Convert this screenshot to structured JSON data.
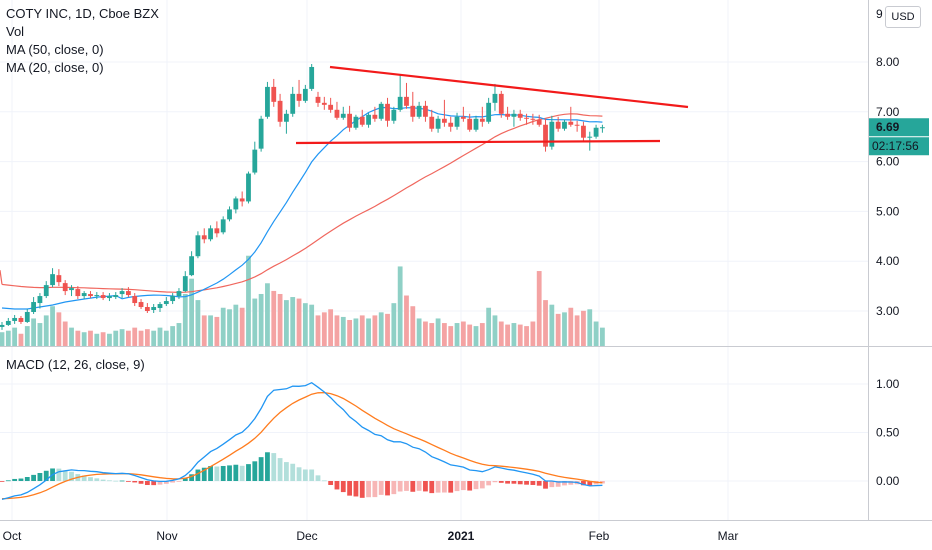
{
  "legend": {
    "symbol": "COTY INC, 1D, Cboe BZX",
    "vol": "Vol",
    "ma50": "MA (50, close, 0)",
    "ma20": "MA (20, close, 0)",
    "macd": "MACD (12, 26, close, 9)"
  },
  "currency": "USD",
  "price_label": "6.69",
  "countdown_label": "02:17:56",
  "top_axis_fragment": "9",
  "colors": {
    "up": "#26a69a",
    "down": "#ef5350",
    "vol_up": "#8fd0c6",
    "vol_down": "#f4a3a3",
    "ma20": "#2196f3",
    "ma50": "#f0675e",
    "macd": "#2196f3",
    "signal": "#ff7c1e",
    "trendline": "#f21a1a",
    "price_tag": "#26a69a"
  },
  "chart_data": [
    {
      "type": "candlestick",
      "title": "COTY INC, 1D, Cboe BZX",
      "y_axis": {
        "ticks": [
          "3.00",
          "4.00",
          "5.00",
          "6.00",
          "7.00",
          "8.00"
        ],
        "range": [
          2.3,
          9.1
        ]
      },
      "x_axis": {
        "ticks": [
          "Oct",
          "Nov",
          "Dec",
          "2021",
          "Feb",
          "Mar"
        ]
      },
      "ohlc": [
        [
          2.68,
          2.78,
          2.62,
          2.72
        ],
        [
          2.72,
          2.86,
          2.7,
          2.8
        ],
        [
          2.8,
          2.92,
          2.74,
          2.86
        ],
        [
          2.86,
          2.9,
          2.74,
          2.78
        ],
        [
          2.78,
          3.04,
          2.76,
          2.98
        ],
        [
          2.98,
          3.28,
          2.94,
          3.18
        ],
        [
          3.16,
          3.36,
          3.05,
          3.3
        ],
        [
          3.3,
          3.6,
          3.26,
          3.52
        ],
        [
          3.52,
          3.86,
          3.48,
          3.74
        ],
        [
          3.72,
          3.84,
          3.5,
          3.58
        ],
        [
          3.56,
          3.62,
          3.32,
          3.4
        ],
        [
          3.42,
          3.52,
          3.3,
          3.46
        ],
        [
          3.44,
          3.5,
          3.24,
          3.3
        ],
        [
          3.3,
          3.4,
          3.24,
          3.36
        ],
        [
          3.34,
          3.4,
          3.26,
          3.3
        ],
        [
          3.3,
          3.38,
          3.24,
          3.32
        ],
        [
          3.32,
          3.38,
          3.22,
          3.26
        ],
        [
          3.26,
          3.36,
          3.2,
          3.3
        ],
        [
          3.28,
          3.38,
          3.24,
          3.32
        ],
        [
          3.34,
          3.46,
          3.26,
          3.4
        ],
        [
          3.4,
          3.48,
          3.28,
          3.32
        ],
        [
          3.3,
          3.36,
          3.1,
          3.16
        ],
        [
          3.18,
          3.24,
          3.04,
          3.08
        ],
        [
          3.08,
          3.16,
          2.96,
          3.0
        ],
        [
          3.02,
          3.14,
          2.96,
          3.08
        ],
        [
          3.06,
          3.18,
          2.98,
          3.14
        ],
        [
          3.14,
          3.28,
          3.1,
          3.2
        ],
        [
          3.2,
          3.36,
          3.14,
          3.3
        ],
        [
          3.3,
          3.46,
          3.24,
          3.4
        ],
        [
          3.4,
          3.8,
          3.38,
          3.7
        ],
        [
          3.72,
          4.2,
          3.7,
          4.1
        ],
        [
          4.1,
          4.6,
          4.06,
          4.52
        ],
        [
          4.52,
          4.66,
          4.36,
          4.44
        ],
        [
          4.44,
          4.72,
          4.4,
          4.66
        ],
        [
          4.66,
          4.8,
          4.48,
          4.56
        ],
        [
          4.58,
          4.9,
          4.54,
          4.84
        ],
        [
          4.84,
          5.1,
          4.8,
          5.04
        ],
        [
          5.04,
          5.3,
          4.96,
          5.26
        ],
        [
          5.26,
          5.4,
          5.1,
          5.2
        ],
        [
          5.2,
          5.8,
          5.16,
          5.76
        ],
        [
          5.78,
          6.4,
          5.74,
          6.24
        ],
        [
          6.26,
          6.92,
          6.2,
          6.86
        ],
        [
          6.9,
          7.6,
          6.86,
          7.5
        ],
        [
          7.5,
          7.66,
          7.1,
          7.2
        ],
        [
          7.22,
          7.36,
          6.7,
          6.8
        ],
        [
          6.8,
          7.04,
          6.56,
          6.96
        ],
        [
          6.96,
          7.5,
          6.9,
          7.36
        ],
        [
          7.36,
          7.64,
          7.1,
          7.22
        ],
        [
          7.22,
          7.54,
          7.18,
          7.46
        ],
        [
          7.46,
          7.96,
          7.42,
          7.9
        ],
        [
          7.3,
          7.4,
          7.1,
          7.18
        ],
        [
          7.18,
          7.3,
          7.04,
          7.14
        ],
        [
          7.14,
          7.28,
          6.98,
          7.04
        ],
        [
          7.04,
          7.2,
          6.84,
          6.88
        ],
        [
          6.88,
          7.1,
          6.84,
          6.96
        ],
        [
          6.96,
          7.12,
          6.6,
          6.68
        ],
        [
          6.68,
          6.94,
          6.64,
          6.9
        ],
        [
          6.9,
          7.04,
          6.7,
          6.74
        ],
        [
          6.74,
          6.98,
          6.68,
          6.94
        ],
        [
          6.94,
          7.1,
          6.8,
          6.86
        ],
        [
          6.86,
          7.2,
          6.82,
          7.16
        ],
        [
          7.16,
          7.28,
          6.7,
          6.82
        ],
        [
          6.82,
          7.1,
          6.76,
          7.04
        ],
        [
          7.04,
          7.76,
          7.0,
          7.3
        ],
        [
          7.3,
          7.58,
          7.06,
          7.12
        ],
        [
          7.12,
          7.4,
          6.8,
          6.9
        ],
        [
          6.9,
          7.2,
          6.86,
          7.12
        ],
        [
          7.12,
          7.22,
          6.8,
          6.9
        ],
        [
          6.9,
          7.04,
          6.6,
          6.66
        ],
        [
          6.66,
          6.92,
          6.58,
          6.86
        ],
        [
          6.86,
          7.24,
          6.7,
          6.78
        ],
        [
          6.78,
          6.9,
          6.6,
          6.7
        ],
        [
          6.7,
          6.98,
          6.64,
          6.9
        ],
        [
          6.9,
          7.1,
          6.8,
          6.86
        ],
        [
          6.86,
          6.96,
          6.6,
          6.64
        ],
        [
          6.64,
          6.92,
          6.6,
          6.86
        ],
        [
          6.86,
          7.1,
          6.7,
          6.8
        ],
        [
          6.8,
          7.28,
          6.76,
          7.18
        ],
        [
          7.18,
          7.56,
          7.02,
          7.36
        ],
        [
          7.36,
          7.42,
          6.88,
          6.96
        ],
        [
          6.96,
          7.1,
          6.84,
          6.9
        ],
        [
          6.9,
          7.04,
          6.7,
          6.96
        ],
        [
          6.96,
          7.04,
          6.82,
          6.88
        ],
        [
          6.88,
          6.96,
          6.74,
          6.86
        ],
        [
          6.86,
          6.96,
          6.74,
          6.84
        ],
        [
          6.84,
          6.94,
          6.7,
          6.74
        ],
        [
          6.74,
          6.86,
          6.2,
          6.3
        ],
        [
          6.3,
          6.92,
          6.24,
          6.8
        ],
        [
          6.8,
          6.9,
          6.6,
          6.66
        ],
        [
          6.66,
          6.84,
          6.62,
          6.8
        ],
        [
          6.8,
          7.1,
          6.7,
          6.74
        ],
        [
          6.74,
          6.82,
          6.6,
          6.72
        ],
        [
          6.72,
          6.8,
          6.4,
          6.48
        ],
        [
          6.48,
          6.6,
          6.22,
          6.5
        ],
        [
          6.5,
          6.74,
          6.46,
          6.68
        ],
        [
          6.68,
          6.74,
          6.58,
          6.69
        ]
      ],
      "volume": [
        0.9,
        1.0,
        1.2,
        0.8,
        1.3,
        1.8,
        1.5,
        2.0,
        2.6,
        2.2,
        1.6,
        1.2,
        1.0,
        0.9,
        1.0,
        0.8,
        0.9,
        0.8,
        1.0,
        1.1,
        1.0,
        1.2,
        1.0,
        1.1,
        1.0,
        1.2,
        1.0,
        1.3,
        1.5,
        3.4,
        4.4,
        3.0,
        2.0,
        2.0,
        1.9,
        2.5,
        2.4,
        2.7,
        2.5,
        5.9,
        3.1,
        3.4,
        4.1,
        3.6,
        3.4,
        3.0,
        3.2,
        3.1,
        2.8,
        2.7,
        2.0,
        2.2,
        2.4,
        2.0,
        1.9,
        1.7,
        1.8,
        2.0,
        1.8,
        2.0,
        2.2,
        2.1,
        2.8,
        5.2,
        3.3,
        2.6,
        1.8,
        1.6,
        1.5,
        1.8,
        1.5,
        1.3,
        1.5,
        1.6,
        1.4,
        1.3,
        1.5,
        2.5,
        2.0,
        1.6,
        1.4,
        1.5,
        1.4,
        1.3,
        1.6,
        4.9,
        3.0,
        2.7,
        2.1,
        2.2,
        2.5,
        2.0,
        2.3,
        2.4,
        1.6,
        1.2
      ],
      "ma20_start": [
        3.06,
        3.05,
        3.04,
        3.04,
        3.04,
        3.06,
        3.08,
        3.1,
        3.12,
        3.15,
        3.18,
        3.2,
        3.22,
        3.24,
        3.26,
        3.28,
        3.29,
        3.3,
        3.31
      ]
    },
    {
      "type": "line",
      "title": "MACD (12, 26, close, 9)",
      "y_axis": {
        "ticks": [
          "0.00",
          "0.50",
          "1.00"
        ]
      },
      "series": [
        {
          "name": "MACD",
          "values": []
        },
        {
          "name": "Signal",
          "values": []
        },
        {
          "name": "Histogram",
          "values": []
        }
      ]
    }
  ]
}
